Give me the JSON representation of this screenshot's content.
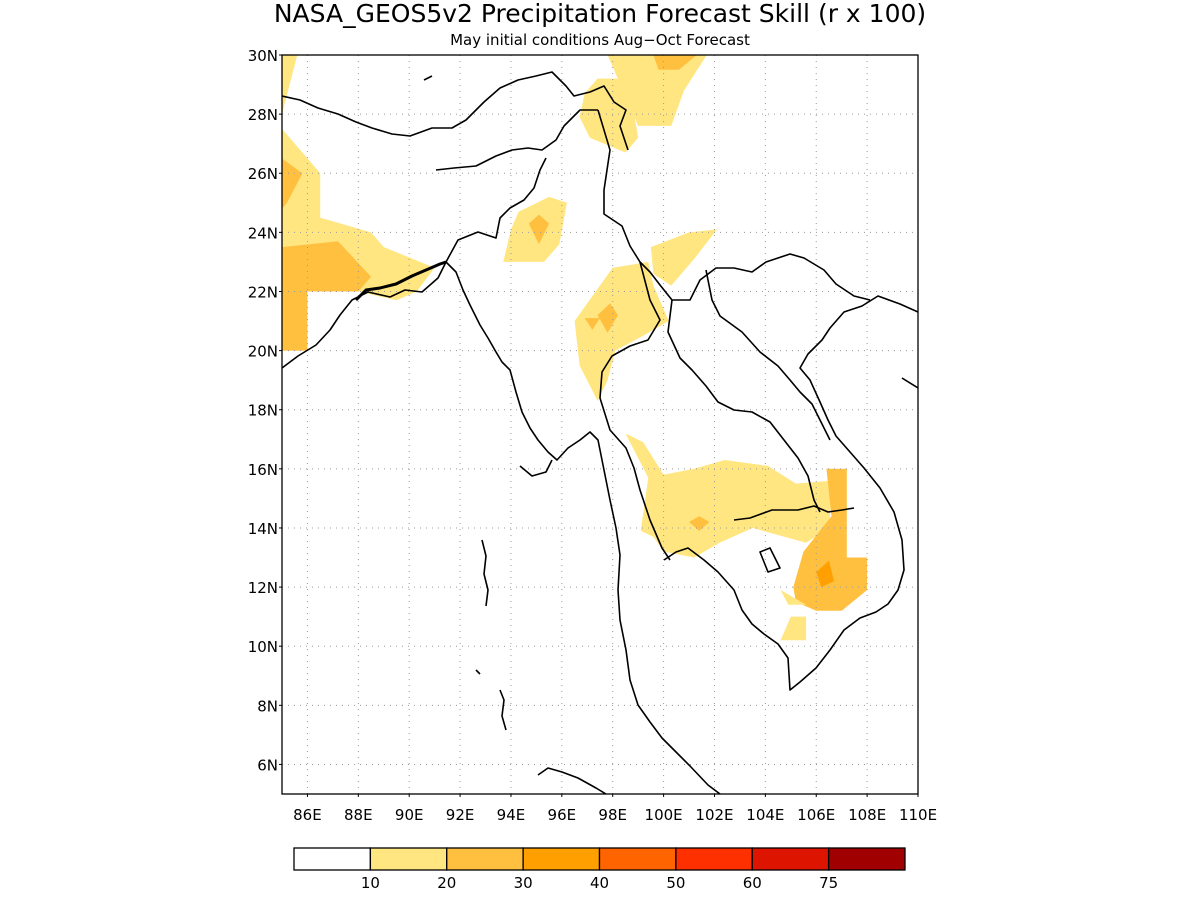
{
  "title": "NASA_GEOS5v2 Precipitation Forecast Skill (r x 100)",
  "subtitle": "May initial conditions  Aug−Oct Forecast",
  "map": {
    "lon_range": [
      85,
      110
    ],
    "lat_range": [
      5,
      30
    ],
    "lon_ticks": [
      "86E",
      "88E",
      "90E",
      "92E",
      "94E",
      "96E",
      "98E",
      "100E",
      "102E",
      "104E",
      "106E",
      "108E",
      "110E"
    ],
    "lat_ticks": [
      "6N",
      "8N",
      "10N",
      "12N",
      "14N",
      "16N",
      "18N",
      "20N",
      "22N",
      "24N",
      "26N",
      "28N",
      "30N"
    ],
    "grid": "dotted"
  },
  "colorbar": {
    "labels": [
      "10",
      "20",
      "30",
      "40",
      "50",
      "60",
      "75"
    ],
    "colors": [
      "#ffffff",
      "#ffe680",
      "#ffc040",
      "#ffa000",
      "#ff6400",
      "#ff3000",
      "#dc1400",
      "#a00000"
    ]
  },
  "chart_data": {
    "type": "heatmap",
    "title": "NASA_GEOS5v2 Precipitation Forecast Skill (r x 100)",
    "subtitle": "May initial conditions  Aug−Oct Forecast",
    "x_label": "",
    "y_label": "",
    "xlim": [
      85,
      110
    ],
    "ylim": [
      5,
      30
    ],
    "levels": [
      10,
      20,
      30,
      40,
      50,
      60,
      75
    ],
    "regions": [
      {
        "level": 10,
        "lonlat": [
          [
            85,
            30
          ],
          [
            85.6,
            30
          ],
          [
            85,
            28
          ]
        ]
      },
      {
        "level": 10,
        "lonlat": [
          [
            85,
            27.5
          ],
          [
            86.5,
            26
          ],
          [
            86.5,
            24.5
          ],
          [
            88.5,
            24
          ],
          [
            89,
            23.5
          ],
          [
            91,
            22.8
          ],
          [
            90.3,
            22
          ],
          [
            89.5,
            21.7
          ],
          [
            88,
            22
          ],
          [
            86,
            22
          ],
          [
            86,
            20
          ],
          [
            85,
            20
          ]
        ]
      },
      {
        "level": 20,
        "lonlat": [
          [
            85,
            23.5
          ],
          [
            87.2,
            23.7
          ],
          [
            88.5,
            22.5
          ],
          [
            88,
            22
          ],
          [
            86,
            22
          ],
          [
            86,
            20
          ],
          [
            85,
            20
          ]
        ]
      },
      {
        "level": 20,
        "lonlat": [
          [
            85,
            26.5
          ],
          [
            85.8,
            26
          ],
          [
            85.2,
            25
          ],
          [
            85,
            24.8
          ]
        ]
      },
      {
        "level": 10,
        "lonlat": [
          [
            97.4,
            29.2
          ],
          [
            98.6,
            29.2
          ],
          [
            99,
            27.2
          ],
          [
            98.5,
            26.7
          ],
          [
            97.1,
            27.2
          ],
          [
            96.7,
            27.9
          ],
          [
            96.9,
            28.7
          ]
        ]
      },
      {
        "level": 10,
        "lonlat": [
          [
            97.8,
            30
          ],
          [
            101.7,
            30
          ],
          [
            100.8,
            28.8
          ],
          [
            100.3,
            27.6
          ],
          [
            99,
            27.6
          ],
          [
            98.6,
            28.4
          ]
        ]
      },
      {
        "level": 20,
        "lonlat": [
          [
            99.6,
            30
          ],
          [
            101.3,
            30
          ],
          [
            100.6,
            29.5
          ],
          [
            99.8,
            29.5
          ]
        ]
      },
      {
        "level": 10,
        "lonlat": [
          [
            94.3,
            24.7
          ],
          [
            95.5,
            25.2
          ],
          [
            96.2,
            25
          ],
          [
            95.9,
            23.6
          ],
          [
            95.3,
            23
          ],
          [
            93.7,
            23
          ],
          [
            94,
            24.1
          ]
        ]
      },
      {
        "level": 20,
        "lonlat": [
          [
            94.7,
            24.3
          ],
          [
            95.1,
            24.6
          ],
          [
            95.5,
            24.3
          ],
          [
            95.1,
            23.6
          ]
        ]
      },
      {
        "level": 10,
        "lonlat": [
          [
            98,
            22.8
          ],
          [
            99.4,
            23
          ],
          [
            99.6,
            22.2
          ],
          [
            100.2,
            21
          ],
          [
            99.2,
            20.5
          ],
          [
            98.1,
            20
          ],
          [
            97.8,
            19
          ],
          [
            97.4,
            18.3
          ],
          [
            96.7,
            19.5
          ],
          [
            96.5,
            21
          ]
        ]
      },
      {
        "level": 20,
        "lonlat": [
          [
            97.4,
            21.2
          ],
          [
            97.9,
            21.6
          ],
          [
            98.2,
            21.2
          ],
          [
            97.8,
            20.6
          ]
        ]
      },
      {
        "level": 20,
        "lonlat": [
          [
            96.9,
            21.1
          ],
          [
            97.5,
            21.1
          ],
          [
            97.2,
            20.7
          ]
        ]
      },
      {
        "level": 10,
        "lonlat": [
          [
            99.5,
            23.5
          ],
          [
            101,
            24
          ],
          [
            102.1,
            24.1
          ],
          [
            101.2,
            23.1
          ],
          [
            100.3,
            22.2
          ],
          [
            99.6,
            22.6
          ]
        ]
      },
      {
        "level": 10,
        "lonlat": [
          [
            98.5,
            17.2
          ],
          [
            99.2,
            16.9
          ],
          [
            100,
            15.8
          ],
          [
            101.2,
            16
          ],
          [
            102.4,
            16.3
          ],
          [
            104.1,
            16.1
          ],
          [
            105.2,
            15.5
          ],
          [
            106.6,
            15.6
          ],
          [
            107,
            16
          ],
          [
            106.6,
            15.1
          ],
          [
            106.5,
            14
          ],
          [
            105.6,
            13.5
          ],
          [
            103.5,
            14
          ],
          [
            102.2,
            13.5
          ],
          [
            101.2,
            13
          ],
          [
            100,
            13.2
          ],
          [
            99.6,
            13.7
          ],
          [
            99.1,
            13.9
          ],
          [
            99.4,
            15.7
          ]
        ]
      },
      {
        "level": 20,
        "lonlat": [
          [
            101,
            14.2
          ],
          [
            101.4,
            14.4
          ],
          [
            101.8,
            14.2
          ],
          [
            101.4,
            13.9
          ]
        ]
      },
      {
        "level": 20,
        "lonlat": [
          [
            106.4,
            16
          ],
          [
            107.2,
            16
          ],
          [
            107.2,
            13
          ],
          [
            108,
            13
          ],
          [
            108,
            11.9
          ],
          [
            107,
            11.2
          ],
          [
            106,
            11.2
          ],
          [
            105.2,
            11.5
          ],
          [
            105.1,
            12
          ],
          [
            105.5,
            13.2
          ],
          [
            106.6,
            14.4
          ]
        ]
      },
      {
        "level": 30,
        "lonlat": [
          [
            106,
            12.5
          ],
          [
            106.5,
            12.9
          ],
          [
            106.7,
            12.2
          ],
          [
            106.2,
            12
          ]
        ]
      },
      {
        "level": 10,
        "lonlat": [
          [
            104.6,
            11.9
          ],
          [
            105.6,
            11.4
          ],
          [
            104.9,
            11.4
          ]
        ]
      },
      {
        "level": 10,
        "lonlat": [
          [
            104.6,
            10.2
          ],
          [
            105.6,
            10.2
          ],
          [
            105.6,
            11
          ],
          [
            105,
            11
          ]
        ]
      }
    ]
  }
}
